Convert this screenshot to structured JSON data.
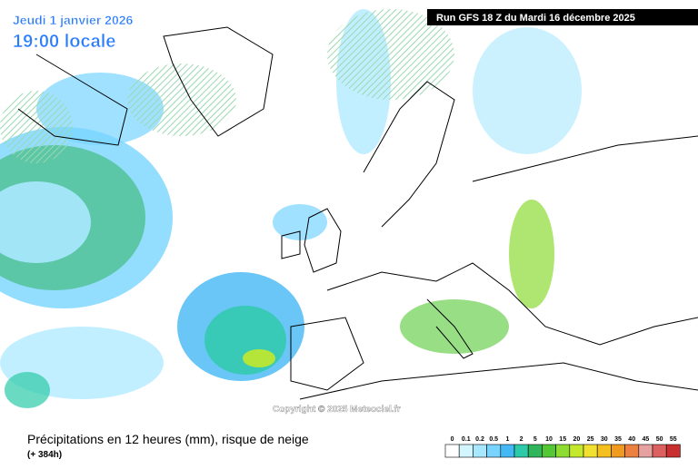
{
  "header": {
    "date": "Jeudi 1 janvier 2026",
    "time": "19:00 locale",
    "run": "Run GFS 18 Z du Mardi 16 décembre 2025"
  },
  "copyright": "Copyright © 2025 Meteociel.fr",
  "footer": {
    "title": "Précipitations en 12 heures (mm), risque de neige",
    "lead": "(+ 384h)"
  },
  "legend": {
    "labels": [
      0,
      0.1,
      0.2,
      0.5,
      1,
      2,
      5,
      10,
      15,
      20,
      25,
      30,
      35,
      40,
      45,
      50,
      55
    ],
    "colors": [
      "#ffffff",
      "#d2f5ff",
      "#a8e8ff",
      "#78d4ff",
      "#44b8f4",
      "#2ccaa8",
      "#30b45c",
      "#54c834",
      "#8cdc34",
      "#c4e82c",
      "#f0e030",
      "#f4c020",
      "#f09a20",
      "#ec8040",
      "#e6a0a0",
      "#dc6060",
      "#c83030"
    ]
  }
}
